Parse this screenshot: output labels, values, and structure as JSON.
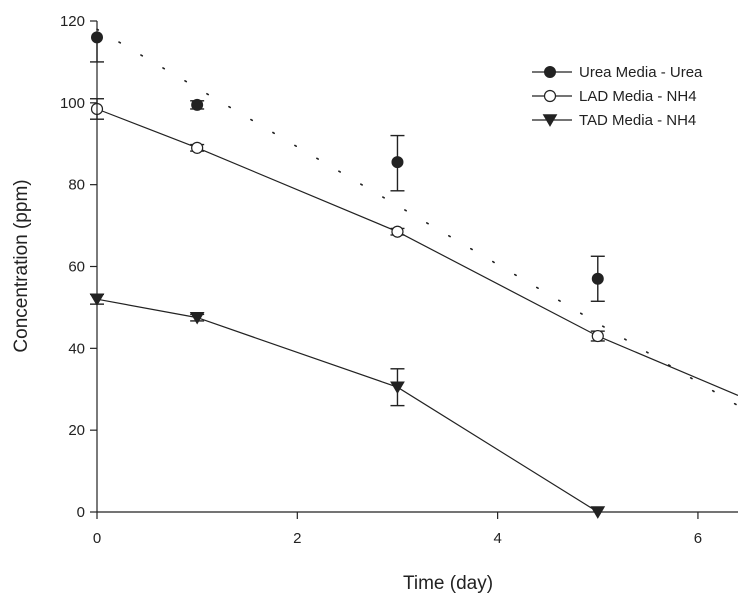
{
  "chart_data": {
    "type": "scatter",
    "xlabel": "Time (day)",
    "ylabel": "Concentration (ppm)",
    "xlim": [
      0,
      6.4
    ],
    "ylim": [
      0,
      120
    ],
    "xticks": [
      0,
      2,
      4,
      6
    ],
    "yticks": [
      0,
      20,
      40,
      60,
      80,
      100,
      120
    ],
    "grid": false,
    "legend_position": "top-right",
    "series": [
      {
        "name": "Urea Media - Urea",
        "marker": "filled-circle",
        "color": "#222222",
        "x": [
          0,
          1,
          3,
          5
        ],
        "y": [
          116,
          99.5,
          85.5,
          57
        ],
        "err_low": [
          6,
          1,
          7,
          5.5
        ],
        "err_high": [
          0,
          1,
          6.5,
          5.5
        ],
        "fit": {
          "style": "dotted",
          "x": [
            0,
            6.4
          ],
          "y": [
            118,
            26
          ]
        }
      },
      {
        "name": "LAD Media - NH4",
        "marker": "open-circle",
        "color": "#222222",
        "x": [
          0,
          1,
          3,
          5
        ],
        "y": [
          98.5,
          89,
          68.5,
          43
        ],
        "err_low": [
          2.5,
          0.8,
          0.8,
          1.2
        ],
        "err_high": [
          2.5,
          0.8,
          0.8,
          1.2
        ],
        "fit": {
          "style": "solid",
          "x": [
            0,
            1,
            3,
            5,
            6.4
          ],
          "y": [
            98.5,
            89,
            68.5,
            43,
            28.5
          ]
        }
      },
      {
        "name": "TAD Media - NH4",
        "marker": "filled-triangle-down",
        "color": "#222222",
        "x": [
          0,
          1,
          3,
          5
        ],
        "y": [
          52,
          47.5,
          30.5,
          0
        ],
        "err_low": [
          1.2,
          0.8,
          4.5,
          0
        ],
        "err_high": [
          1.2,
          0.8,
          4.5,
          0
        ],
        "fit": {
          "style": "solid",
          "x": [
            0,
            1,
            3,
            5
          ],
          "y": [
            52,
            47.5,
            30.5,
            0
          ]
        }
      }
    ]
  }
}
